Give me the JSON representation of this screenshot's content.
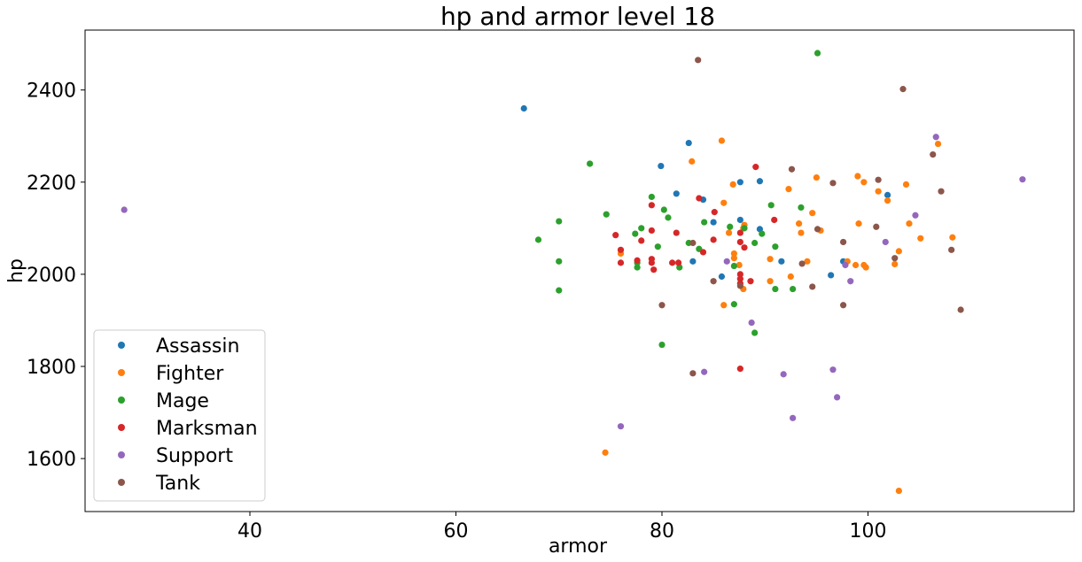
{
  "chart_data": {
    "type": "scatter",
    "title": "hp and armor level 18",
    "xlabel": "armor",
    "ylabel": "hp",
    "xlim": [
      24,
      120
    ],
    "ylim": [
      1485,
      2530
    ],
    "xticks": [
      40,
      60,
      80,
      100
    ],
    "yticks": [
      1600,
      1800,
      2000,
      2200,
      2400
    ],
    "grid": false,
    "legend_position": "lower-left",
    "series": [
      {
        "name": "Assassin",
        "color": "#1f77b4",
        "points": [
          [
            66.6,
            2360
          ],
          [
            79.9,
            2235
          ],
          [
            82.6,
            2285
          ],
          [
            81.4,
            2175
          ],
          [
            84.0,
            2162
          ],
          [
            85.0,
            2113
          ],
          [
            87.6,
            2200
          ],
          [
            89.5,
            2202
          ],
          [
            87.6,
            2118
          ],
          [
            89.5,
            2098
          ],
          [
            83.0,
            2028
          ],
          [
            85.8,
            1995
          ],
          [
            91.6,
            2028
          ],
          [
            96.4,
            1998
          ],
          [
            97.6,
            2028
          ],
          [
            101.9,
            2172
          ]
        ]
      },
      {
        "name": "Fighter",
        "color": "#ff7f0e",
        "points": [
          [
            74.5,
            1613
          ],
          [
            76.0,
            2045
          ],
          [
            82.9,
            2245
          ],
          [
            85.8,
            2290
          ],
          [
            86.0,
            2155
          ],
          [
            86.5,
            2090
          ],
          [
            86.9,
            2195
          ],
          [
            87.0,
            2045
          ],
          [
            87.0,
            2035
          ],
          [
            87.5,
            2020
          ],
          [
            87.9,
            1968
          ],
          [
            87.9,
            2100
          ],
          [
            88.0,
            2107
          ],
          [
            86.0,
            1933
          ],
          [
            90.5,
            2033
          ],
          [
            90.5,
            1985
          ],
          [
            92.3,
            2185
          ],
          [
            92.5,
            1995
          ],
          [
            93.3,
            2110
          ],
          [
            93.5,
            2090
          ],
          [
            94.1,
            2028
          ],
          [
            94.6,
            2133
          ],
          [
            95.0,
            2210
          ],
          [
            95.4,
            2095
          ],
          [
            98.0,
            2028
          ],
          [
            98.8,
            2020
          ],
          [
            99.0,
            2213
          ],
          [
            99.1,
            2110
          ],
          [
            99.6,
            2200
          ],
          [
            99.6,
            2020
          ],
          [
            99.8,
            2015
          ],
          [
            101.0,
            2180
          ],
          [
            101.9,
            2160
          ],
          [
            102.6,
            2022
          ],
          [
            103.0,
            2050
          ],
          [
            103.7,
            2195
          ],
          [
            104.0,
            2110
          ],
          [
            105.1,
            2078
          ],
          [
            106.8,
            2283
          ],
          [
            108.2,
            2080
          ],
          [
            103.0,
            1530
          ]
        ]
      },
      {
        "name": "Mage",
        "color": "#2ca02c",
        "points": [
          [
            68.0,
            2075
          ],
          [
            70.0,
            2115
          ],
          [
            70.0,
            2028
          ],
          [
            70.0,
            1965
          ],
          [
            73.0,
            2240
          ],
          [
            74.6,
            2130
          ],
          [
            77.4,
            2088
          ],
          [
            77.6,
            2015
          ],
          [
            77.6,
            2025
          ],
          [
            78.0,
            2100
          ],
          [
            79.0,
            2168
          ],
          [
            79.6,
            2060
          ],
          [
            80.2,
            2140
          ],
          [
            80.6,
            2123
          ],
          [
            81.7,
            2015
          ],
          [
            80.0,
            1847
          ],
          [
            82.6,
            2068
          ],
          [
            83.6,
            2055
          ],
          [
            84.1,
            2113
          ],
          [
            86.6,
            2103
          ],
          [
            87.0,
            2018
          ],
          [
            87.0,
            1935
          ],
          [
            88.0,
            2100
          ],
          [
            89.0,
            2068
          ],
          [
            89.0,
            1873
          ],
          [
            89.7,
            2088
          ],
          [
            90.6,
            2150
          ],
          [
            91.0,
            2060
          ],
          [
            91.0,
            1968
          ],
          [
            92.7,
            1968
          ],
          [
            93.5,
            2145
          ],
          [
            95.1,
            2480
          ]
        ]
      },
      {
        "name": "Marksman",
        "color": "#d62728",
        "points": [
          [
            75.5,
            2085
          ],
          [
            76.0,
            2053
          ],
          [
            76.0,
            2025
          ],
          [
            77.6,
            2030
          ],
          [
            78.0,
            2073
          ],
          [
            79.0,
            2150
          ],
          [
            79.0,
            2095
          ],
          [
            79.0,
            2033
          ],
          [
            79.0,
            2025
          ],
          [
            79.2,
            2010
          ],
          [
            81.0,
            2025
          ],
          [
            81.4,
            2090
          ],
          [
            81.6,
            2025
          ],
          [
            83.6,
            2165
          ],
          [
            84.0,
            2048
          ],
          [
            85.0,
            2075
          ],
          [
            85.1,
            2135
          ],
          [
            87.6,
            2090
          ],
          [
            87.6,
            2070
          ],
          [
            87.6,
            2000
          ],
          [
            87.6,
            1990
          ],
          [
            87.6,
            1980
          ],
          [
            87.6,
            1795
          ],
          [
            88.0,
            2058
          ],
          [
            88.6,
            1985
          ],
          [
            89.1,
            2233
          ],
          [
            90.9,
            2118
          ]
        ]
      },
      {
        "name": "Support",
        "color": "#9467bd",
        "points": [
          [
            27.8,
            2140
          ],
          [
            76.0,
            1670
          ],
          [
            84.1,
            1788
          ],
          [
            86.3,
            2028
          ],
          [
            88.7,
            1895
          ],
          [
            91.8,
            1783
          ],
          [
            92.7,
            1688
          ],
          [
            96.6,
            1793
          ],
          [
            97.0,
            1733
          ],
          [
            97.8,
            2020
          ],
          [
            98.3,
            1985
          ],
          [
            101.7,
            2070
          ],
          [
            104.6,
            2128
          ],
          [
            106.6,
            2298
          ],
          [
            115.0,
            2206
          ]
        ]
      },
      {
        "name": "Tank",
        "color": "#8c564b",
        "points": [
          [
            80.0,
            1933
          ],
          [
            83.0,
            1785
          ],
          [
            83.0,
            2068
          ],
          [
            83.5,
            2465
          ],
          [
            85.0,
            1985
          ],
          [
            87.6,
            1975
          ],
          [
            92.6,
            2228
          ],
          [
            93.6,
            2023
          ],
          [
            94.6,
            1973
          ],
          [
            95.1,
            2098
          ],
          [
            96.6,
            2198
          ],
          [
            97.6,
            2070
          ],
          [
            97.6,
            1933
          ],
          [
            100.8,
            2103
          ],
          [
            101.0,
            2205
          ],
          [
            102.6,
            2035
          ],
          [
            103.4,
            2402
          ],
          [
            106.3,
            2260
          ],
          [
            107.1,
            2180
          ],
          [
            108.1,
            2053
          ],
          [
            109.0,
            1923
          ]
        ]
      }
    ]
  }
}
